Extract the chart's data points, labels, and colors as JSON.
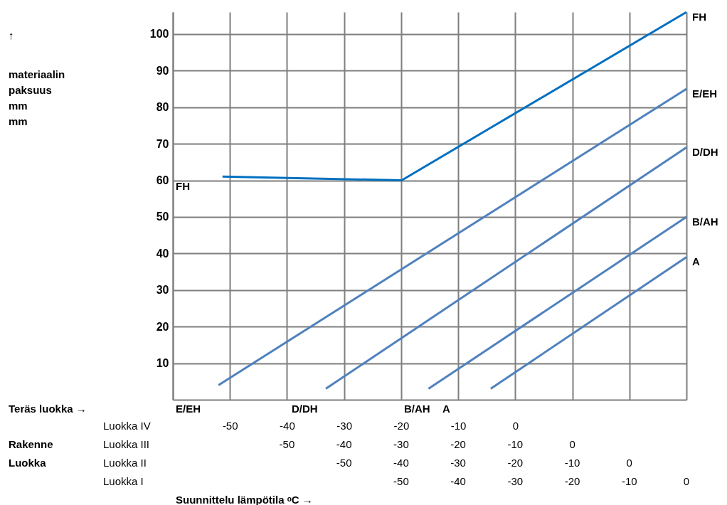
{
  "chart_data": {
    "type": "line",
    "xlim": [
      -60,
      30
    ],
    "xticks": [
      {
        "value": -60,
        "label": null
      },
      -50,
      -40,
      -30,
      -20,
      -10,
      0,
      {
        "value": 10,
        "label": null
      },
      {
        "value": 20,
        "label": null
      },
      {
        "value": 30,
        "label": null
      }
    ],
    "ylim": [
      0,
      106
    ],
    "yticks": [
      10,
      20,
      30,
      40,
      50,
      60,
      70,
      80,
      90,
      100
    ],
    "grid": true,
    "line_style": "solid",
    "series": [
      {
        "name": "FH",
        "color": "#0070c0",
        "x": [
          -51.3,
          -19.9,
          30
        ],
        "values": [
          61,
          60,
          106
        ]
      },
      {
        "name": "E/EH",
        "color": "#4f81bd",
        "x": [
          -52,
          30
        ],
        "values": [
          4,
          85
        ]
      },
      {
        "name": "D/DH",
        "color": "#4f81bd",
        "x": [
          -33.2,
          30
        ],
        "values": [
          3,
          69
        ]
      },
      {
        "name": "B/AH",
        "color": "#4f81bd",
        "x": [
          -15.2,
          30
        ],
        "values": [
          3,
          50
        ]
      },
      {
        "name": "A",
        "color": "#4f81bd",
        "x": [
          -4.3,
          30
        ],
        "values": [
          3,
          39
        ]
      }
    ],
    "annotations": [
      "↑",
      "materiaalin\npaksuus\nmm\nmm",
      "FH",
      "Teräs luokka  →",
      "E/EH",
      "D/DH",
      "B/AH",
      "A",
      "Rakenne",
      "Luokka",
      "Luokka IV",
      "Luokka III",
      "Luokka II",
      "Luokka I",
      "-50",
      "-40",
      "-30",
      "-20",
      "-10",
      "0",
      "-50",
      "-40",
      "-30",
      "-20",
      "-10",
      "0",
      "-50",
      "-40",
      "-30",
      "-20",
      "-10",
      "0",
      "Suunnittelu lämpötila ᵒC →"
    ]
  }
}
